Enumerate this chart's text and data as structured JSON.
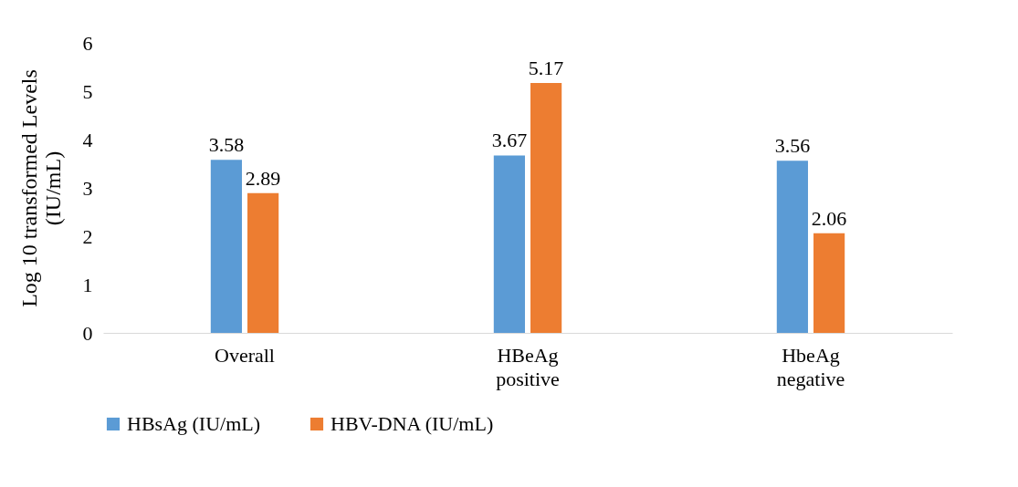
{
  "chart_data": {
    "type": "bar",
    "ylabel": "Log 10 transformed Levels (IU/mL)",
    "categories": [
      "Overall",
      "HBeAg positive",
      "HbeAg negative"
    ],
    "series": [
      {
        "name": "HBsAg (IU/mL)",
        "color": "#5b9bd5",
        "values": [
          3.58,
          3.67,
          3.56
        ]
      },
      {
        "name": "HBV-DNA (IU/mL)",
        "color": "#ed7d31",
        "values": [
          2.89,
          5.17,
          2.06
        ]
      }
    ],
    "ylim": [
      0,
      6
    ],
    "yticks": [
      0,
      1,
      2,
      3,
      4,
      5,
      6
    ],
    "grid": false,
    "legend": "bottom",
    "data_labels": true
  }
}
